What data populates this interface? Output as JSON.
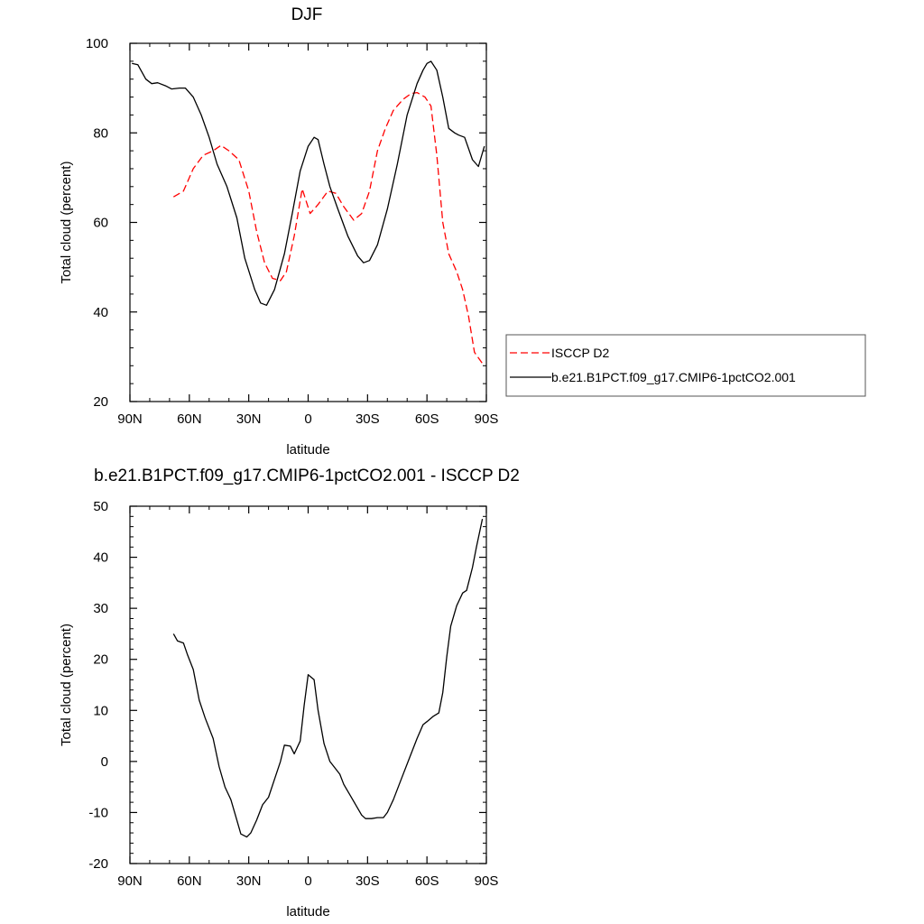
{
  "colors": {
    "obs": "#ff0000",
    "model": "#000000"
  },
  "chart_data": [
    {
      "type": "line",
      "title": "DJF",
      "xlabel": "latitude",
      "ylabel": "Total cloud (percent)",
      "xlim": [
        90,
        -90
      ],
      "ylim": [
        20,
        100
      ],
      "xticks": [
        {
          "v": 90,
          "label": "90N"
        },
        {
          "v": 60,
          "label": "60N"
        },
        {
          "v": 30,
          "label": "30N"
        },
        {
          "v": 0,
          "label": "0"
        },
        {
          "v": -30,
          "label": "30S"
        },
        {
          "v": -60,
          "label": "60S"
        },
        {
          "v": -90,
          "label": "90S"
        }
      ],
      "yticks": [
        {
          "v": 20,
          "label": "20"
        },
        {
          "v": 40,
          "label": "40"
        },
        {
          "v": 60,
          "label": "60"
        },
        {
          "v": 80,
          "label": "80"
        },
        {
          "v": 100,
          "label": "100"
        }
      ],
      "legend": "right",
      "series": [
        {
          "name": "ISCCP D2",
          "style": "dashed",
          "color": "#ff0000",
          "points": [
            [
              68,
              65.7
            ],
            [
              63,
              67
            ],
            [
              58,
              72
            ],
            [
              53,
              75
            ],
            [
              48,
              76
            ],
            [
              44,
              77.2
            ],
            [
              40,
              76
            ],
            [
              35,
              74
            ],
            [
              30,
              67
            ],
            [
              26,
              58
            ],
            [
              22,
              51
            ],
            [
              18,
              47.5
            ],
            [
              14,
              47
            ],
            [
              11,
              49
            ],
            [
              7,
              57
            ],
            [
              3,
              67.5
            ],
            [
              -1,
              62
            ],
            [
              -5,
              64
            ],
            [
              -10,
              67
            ],
            [
              -14,
              66.5
            ],
            [
              -18,
              63.5
            ],
            [
              -23,
              60.5
            ],
            [
              -27,
              62
            ],
            [
              -31,
              67
            ],
            [
              -35,
              76
            ],
            [
              -39,
              81
            ],
            [
              -43,
              85
            ],
            [
              -48,
              87.5
            ],
            [
              -52,
              88.8
            ],
            [
              -55,
              89
            ],
            [
              -59,
              88
            ],
            [
              -62,
              86
            ],
            [
              -65,
              75
            ],
            [
              -68,
              60
            ],
            [
              -71,
              53
            ],
            [
              -75,
              49
            ],
            [
              -78,
              45
            ],
            [
              -81,
              39
            ],
            [
              -84,
              31
            ],
            [
              -88,
              28.5
            ]
          ]
        },
        {
          "name": "b.e21.B1PCT.f09_g17.CMIP6-1pctCO2.001",
          "style": "solid",
          "color": "#000000",
          "points": [
            [
              89,
              95.5
            ],
            [
              86,
              95.2
            ],
            [
              82,
              92
            ],
            [
              79,
              91
            ],
            [
              76,
              91.2
            ],
            [
              72,
              90.5
            ],
            [
              69,
              89.8
            ],
            [
              65,
              90
            ],
            [
              62,
              90
            ],
            [
              58,
              88
            ],
            [
              54,
              84
            ],
            [
              50,
              79
            ],
            [
              46,
              73
            ],
            [
              41,
              68
            ],
            [
              36,
              61
            ],
            [
              32,
              52
            ],
            [
              27,
              45
            ],
            [
              24,
              42
            ],
            [
              21,
              41.5
            ],
            [
              17,
              45
            ],
            [
              12,
              53
            ],
            [
              8,
              62
            ],
            [
              4,
              71.5
            ],
            [
              0,
              77
            ],
            [
              -3,
              79
            ],
            [
              -5,
              78.5
            ],
            [
              -8,
              73
            ],
            [
              -11,
              68
            ],
            [
              -15,
              63
            ],
            [
              -20,
              57
            ],
            [
              -25,
              52.5
            ],
            [
              -28,
              51
            ],
            [
              -31,
              51.5
            ],
            [
              -35,
              55
            ],
            [
              -40,
              63
            ],
            [
              -45,
              73
            ],
            [
              -50,
              84
            ],
            [
              -55,
              91
            ],
            [
              -58,
              94
            ],
            [
              -60,
              95.5
            ],
            [
              -62,
              96
            ],
            [
              -65,
              94
            ],
            [
              -68,
              88
            ],
            [
              -71,
              81
            ],
            [
              -74,
              80
            ],
            [
              -76,
              79.5
            ],
            [
              -79,
              79
            ],
            [
              -83,
              74
            ],
            [
              -86,
              72.5
            ],
            [
              -89,
              77
            ]
          ]
        }
      ]
    },
    {
      "type": "line",
      "title": "b.e21.B1PCT.f09_g17.CMIP6-1pctCO2.001 - ISCCP D2",
      "xlabel": "latitude",
      "ylabel": "Total cloud (percent)",
      "xlim": [
        90,
        -90
      ],
      "ylim": [
        -20,
        50
      ],
      "xticks": [
        {
          "v": 90,
          "label": "90N"
        },
        {
          "v": 60,
          "label": "60N"
        },
        {
          "v": 30,
          "label": "30N"
        },
        {
          "v": 0,
          "label": "0"
        },
        {
          "v": -30,
          "label": "30S"
        },
        {
          "v": -60,
          "label": "60S"
        },
        {
          "v": -90,
          "label": "90S"
        }
      ],
      "yticks": [
        {
          "v": -20,
          "label": "-20"
        },
        {
          "v": -10,
          "label": "-10"
        },
        {
          "v": 0,
          "label": "0"
        },
        {
          "v": 10,
          "label": "10"
        },
        {
          "v": 20,
          "label": "20"
        },
        {
          "v": 30,
          "label": "30"
        },
        {
          "v": 40,
          "label": "40"
        },
        {
          "v": 50,
          "label": "50"
        }
      ],
      "series": [
        {
          "style": "solid",
          "color": "#000000",
          "points": [
            [
              68,
              25
            ],
            [
              66,
              23.6
            ],
            [
              63,
              23.2
            ],
            [
              61,
              21
            ],
            [
              58,
              18
            ],
            [
              55,
              12
            ],
            [
              52,
              8.5
            ],
            [
              48,
              4.5
            ],
            [
              45,
              -1
            ],
            [
              42,
              -5
            ],
            [
              39,
              -7.5
            ],
            [
              36,
              -11.5
            ],
            [
              34,
              -14.2
            ],
            [
              31,
              -14.8
            ],
            [
              29,
              -14
            ],
            [
              26,
              -11.5
            ],
            [
              23,
              -8.5
            ],
            [
              20,
              -7
            ],
            [
              17,
              -3.5
            ],
            [
              14,
              0
            ],
            [
              12,
              3.2
            ],
            [
              9,
              3
            ],
            [
              7,
              1.5
            ],
            [
              4,
              4
            ],
            [
              2,
              11
            ],
            [
              0,
              17
            ],
            [
              -3,
              16
            ],
            [
              -5,
              10
            ],
            [
              -8,
              3.5
            ],
            [
              -11,
              0
            ],
            [
              -13,
              -1
            ],
            [
              -16,
              -2.5
            ],
            [
              -18,
              -4.5
            ],
            [
              -21,
              -6.5
            ],
            [
              -24,
              -8.5
            ],
            [
              -27,
              -10.5
            ],
            [
              -29,
              -11.2
            ],
            [
              -32,
              -11.2
            ],
            [
              -35,
              -11
            ],
            [
              -38,
              -11
            ],
            [
              -40,
              -10
            ],
            [
              -43,
              -7.5
            ],
            [
              -47,
              -3.5
            ],
            [
              -51,
              0.5
            ],
            [
              -55,
              4.5
            ],
            [
              -58,
              7.2
            ],
            [
              -60,
              7.8
            ],
            [
              -63,
              8.8
            ],
            [
              -66,
              9.5
            ],
            [
              -68,
              13.5
            ],
            [
              -70,
              20.5
            ],
            [
              -72,
              26.5
            ],
            [
              -75,
              30.5
            ],
            [
              -78,
              33
            ],
            [
              -80,
              33.5
            ],
            [
              -83,
              38
            ],
            [
              -85,
              42
            ],
            [
              -88,
              47.5
            ]
          ]
        }
      ]
    }
  ]
}
